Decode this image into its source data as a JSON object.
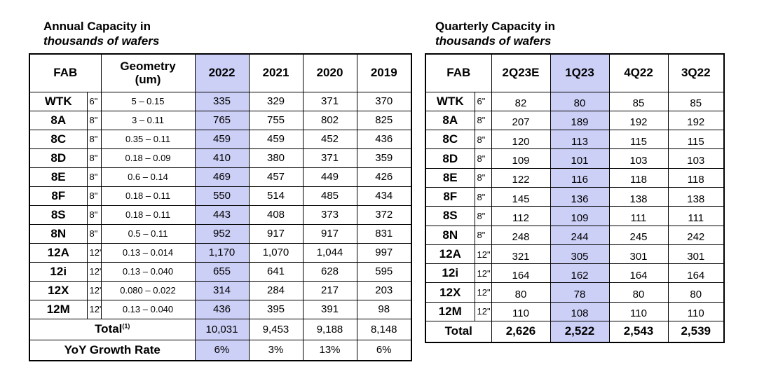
{
  "annual": {
    "caption_line1": "Annual Capacity in",
    "caption_line2": "thousands of wafers",
    "headers": {
      "fab": "FAB",
      "geometry_line1": "Geometry",
      "geometry_line2": "(um)",
      "years": [
        "2022",
        "2021",
        "2020",
        "2019"
      ]
    },
    "rows": [
      {
        "fab": "WTK",
        "size": "6\"",
        "geometry": "5 – 0.15",
        "values": [
          "335",
          "329",
          "371",
          "370"
        ]
      },
      {
        "fab": "8A",
        "size": "8\"",
        "geometry": "3 – 0.11",
        "values": [
          "765",
          "755",
          "802",
          "825"
        ]
      },
      {
        "fab": "8C",
        "size": "8\"",
        "geometry": "0.35 – 0.11",
        "values": [
          "459",
          "459",
          "452",
          "436"
        ]
      },
      {
        "fab": "8D",
        "size": "8\"",
        "geometry": "0.18 – 0.09",
        "values": [
          "410",
          "380",
          "371",
          "359"
        ]
      },
      {
        "fab": "8E",
        "size": "8\"",
        "geometry": "0.6 – 0.14",
        "values": [
          "469",
          "457",
          "449",
          "426"
        ]
      },
      {
        "fab": "8F",
        "size": "8\"",
        "geometry": "0.18 – 0.11",
        "values": [
          "550",
          "514",
          "485",
          "434"
        ]
      },
      {
        "fab": "8S",
        "size": "8\"",
        "geometry": "0.18 – 0.11",
        "values": [
          "443",
          "408",
          "373",
          "372"
        ]
      },
      {
        "fab": "8N",
        "size": "8\"",
        "geometry": "0.5 – 0.11",
        "values": [
          "952",
          "917",
          "917",
          "831"
        ]
      },
      {
        "fab": "12A",
        "size": "12\"",
        "geometry": "0.13 – 0.014",
        "values": [
          "1,170",
          "1,070",
          "1,044",
          "997"
        ]
      },
      {
        "fab": "12i",
        "size": "12\"",
        "geometry": "0.13 – 0.040",
        "values": [
          "655",
          "641",
          "628",
          "595"
        ]
      },
      {
        "fab": "12X",
        "size": "12\"",
        "geometry": "0.080 – 0.022",
        "values": [
          "314",
          "284",
          "217",
          "203"
        ]
      },
      {
        "fab": "12M",
        "size": "12\"",
        "geometry": "0.13 – 0.040",
        "values": [
          "436",
          "395",
          "391",
          "98"
        ]
      }
    ],
    "total": {
      "label": "Total",
      "footnote": "(1)",
      "values": [
        "10,031",
        "9,453",
        "9,188",
        "8,148"
      ]
    },
    "growth": {
      "label": "YoY Growth Rate",
      "values": [
        "6%",
        "3%",
        "13%",
        "6%"
      ]
    }
  },
  "quarterly": {
    "caption_line1": "Quarterly Capacity in",
    "caption_line2": "thousands of wafers",
    "headers": {
      "fab": "FAB",
      "quarters": [
        "2Q23E",
        "1Q23",
        "4Q22",
        "3Q22"
      ]
    },
    "rows": [
      {
        "fab": "WTK",
        "size": "6\"",
        "values": [
          "82",
          "80",
          "85",
          "85"
        ]
      },
      {
        "fab": "8A",
        "size": "8\"",
        "values": [
          "207",
          "189",
          "192",
          "192"
        ]
      },
      {
        "fab": "8C",
        "size": "8\"",
        "values": [
          "120",
          "113",
          "115",
          "115"
        ]
      },
      {
        "fab": "8D",
        "size": "8\"",
        "values": [
          "109",
          "101",
          "103",
          "103"
        ]
      },
      {
        "fab": "8E",
        "size": "8\"",
        "values": [
          "122",
          "116",
          "118",
          "118"
        ]
      },
      {
        "fab": "8F",
        "size": "8\"",
        "values": [
          "145",
          "136",
          "138",
          "138"
        ]
      },
      {
        "fab": "8S",
        "size": "8\"",
        "values": [
          "112",
          "109",
          "111",
          "111"
        ]
      },
      {
        "fab": "8N",
        "size": "8\"",
        "values": [
          "248",
          "244",
          "245",
          "242"
        ]
      },
      {
        "fab": "12A",
        "size": "12\"",
        "values": [
          "321",
          "305",
          "301",
          "301"
        ]
      },
      {
        "fab": "12i",
        "size": "12\"",
        "values": [
          "164",
          "162",
          "164",
          "164"
        ]
      },
      {
        "fab": "12X",
        "size": "12\"",
        "values": [
          "80",
          "78",
          "80",
          "80"
        ]
      },
      {
        "fab": "12M",
        "size": "12\"",
        "values": [
          "110",
          "108",
          "110",
          "110"
        ]
      }
    ],
    "total": {
      "label": "Total",
      "values": [
        "2,626",
        "2,522",
        "2,543",
        "2,539"
      ]
    }
  },
  "colors": {
    "highlight": "#cccff6",
    "border": "#000000"
  }
}
